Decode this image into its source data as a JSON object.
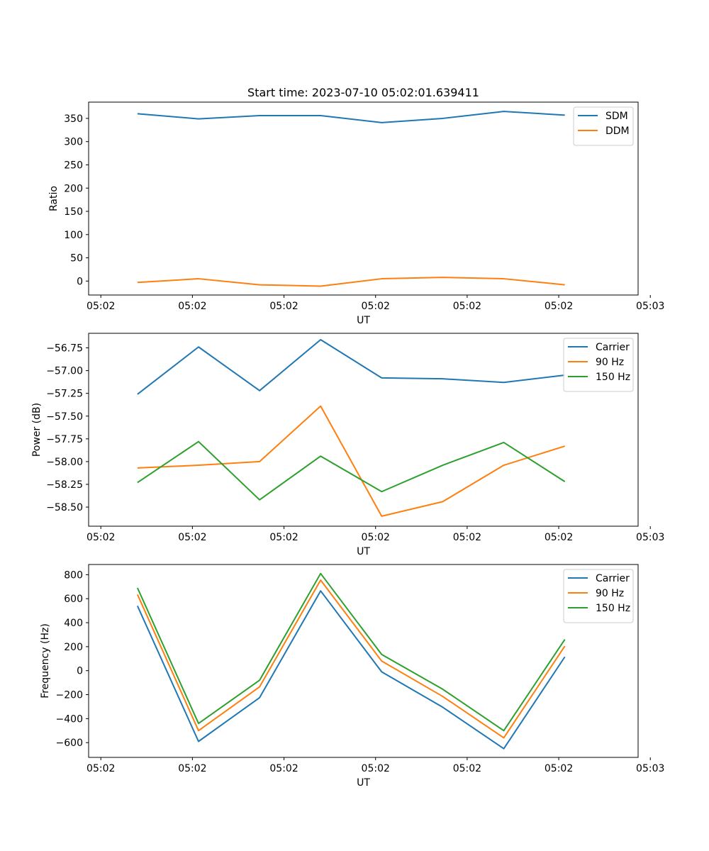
{
  "title": "Start time: 2023-07-10 05:02:01.639411",
  "colors": {
    "blue": "#1f77b4",
    "orange": "#ff7f0e",
    "green": "#2ca02c"
  },
  "chart_data": [
    {
      "type": "line",
      "title": "Start time: 2023-07-10 05:02:01.639411",
      "xlabel": "UT",
      "ylabel": "Ratio",
      "x": [
        1,
        2,
        3,
        4,
        5,
        6,
        7,
        8
      ],
      "xlim": [
        0.2,
        9.2
      ],
      "xticks": [
        0.4,
        1.9,
        3.4,
        4.9,
        6.4,
        7.9,
        9.4
      ],
      "xtick_labels": [
        "05:02",
        "05:02",
        "05:02",
        "05:02",
        "05:02",
        "05:02",
        "05:03"
      ],
      "ylim": [
        -30,
        385
      ],
      "yticks": [
        0,
        50,
        100,
        150,
        200,
        250,
        300,
        350
      ],
      "ytick_labels": [
        "0",
        "50",
        "100",
        "150",
        "200",
        "250",
        "300",
        "350"
      ],
      "legend_loc": "top-right",
      "series": [
        {
          "name": "SDM",
          "color": "#1f77b4",
          "values": [
            360,
            349,
            356,
            356,
            341,
            350,
            365,
            357
          ]
        },
        {
          "name": "DDM",
          "color": "#ff7f0e",
          "values": [
            -3,
            5,
            -8,
            -11,
            5,
            8,
            5,
            -8
          ]
        }
      ]
    },
    {
      "type": "line",
      "title": "",
      "xlabel": "UT",
      "ylabel": "Power (dB)",
      "x": [
        1,
        2,
        3,
        4,
        5,
        6,
        7,
        8
      ],
      "xlim": [
        0.2,
        9.2
      ],
      "xticks": [
        0.4,
        1.9,
        3.4,
        4.9,
        6.4,
        7.9,
        9.4
      ],
      "xtick_labels": [
        "05:02",
        "05:02",
        "05:02",
        "05:02",
        "05:02",
        "05:02",
        "05:03"
      ],
      "ylim": [
        -58.71,
        -56.59
      ],
      "yticks": [
        -58.5,
        -58.25,
        -58.0,
        -57.75,
        -57.5,
        -57.25,
        -57.0,
        -56.75
      ],
      "ytick_labels": [
        "−58.50",
        "−58.25",
        "−58.00",
        "−57.75",
        "−57.50",
        "−57.25",
        "−57.00",
        "−56.75"
      ],
      "legend_loc": "top-right",
      "series": [
        {
          "name": "Carrier",
          "color": "#1f77b4",
          "values": [
            -57.26,
            -56.74,
            -57.22,
            -56.66,
            -57.08,
            -57.09,
            -57.13,
            -57.05
          ]
        },
        {
          "name": "90 Hz",
          "color": "#ff7f0e",
          "values": [
            -58.07,
            -58.04,
            -58.0,
            -57.39,
            -58.6,
            -58.44,
            -58.04,
            -57.83
          ]
        },
        {
          "name": "150 Hz",
          "color": "#2ca02c",
          "values": [
            -58.23,
            -57.78,
            -58.42,
            -57.94,
            -58.33,
            -58.04,
            -57.79,
            -58.22
          ]
        }
      ]
    },
    {
      "type": "line",
      "title": "",
      "xlabel": "UT",
      "ylabel": "Frequency (Hz)",
      "x": [
        1,
        2,
        3,
        4,
        5,
        6,
        7,
        8
      ],
      "xlim": [
        0.2,
        9.2
      ],
      "xticks": [
        0.4,
        1.9,
        3.4,
        4.9,
        6.4,
        7.9,
        9.4
      ],
      "xtick_labels": [
        "05:02",
        "05:02",
        "05:02",
        "05:02",
        "05:02",
        "05:02",
        "05:03"
      ],
      "ylim": [
        -723,
        885
      ],
      "yticks": [
        -600,
        -400,
        -200,
        0,
        200,
        400,
        600,
        800
      ],
      "ytick_labels": [
        "−600",
        "−400",
        "−200",
        "0",
        "200",
        "400",
        "600",
        "800"
      ],
      "legend_loc": "top-right",
      "series": [
        {
          "name": "Carrier",
          "color": "#1f77b4",
          "values": [
            540,
            -590,
            -225,
            665,
            -10,
            -305,
            -650,
            115
          ]
        },
        {
          "name": "90 Hz",
          "color": "#ff7f0e",
          "values": [
            635,
            -500,
            -135,
            755,
            80,
            -215,
            -560,
            205
          ]
        },
        {
          "name": "150 Hz",
          "color": "#2ca02c",
          "values": [
            690,
            -440,
            -80,
            810,
            135,
            -155,
            -500,
            260
          ]
        }
      ]
    }
  ]
}
